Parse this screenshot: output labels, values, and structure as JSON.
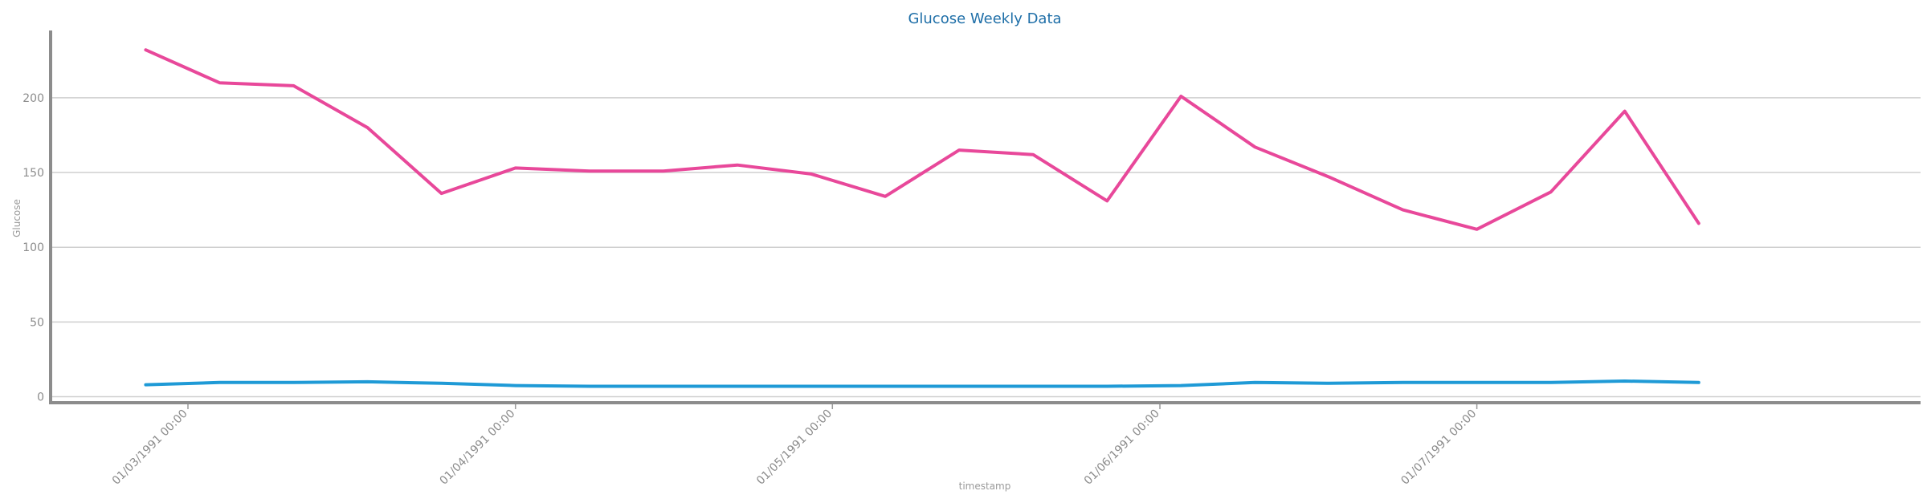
{
  "chart_data": {
    "type": "line",
    "title": "Glucose Weekly Data",
    "xlabel": "timestamp",
    "ylabel": "Glucose",
    "ylim": [
      -4,
      245
    ],
    "yticks": [
      0,
      50,
      100,
      150,
      200
    ],
    "xlim": [
      "1991-02-16",
      "1991-08-12"
    ],
    "xticks": [
      {
        "date": "1991-03-01",
        "label": "01/03/1991 00:00"
      },
      {
        "date": "1991-04-01",
        "label": "01/04/1991 00:00"
      },
      {
        "date": "1991-05-01",
        "label": "01/05/1991 00:00"
      },
      {
        "date": "1991-06-01",
        "label": "01/06/1991 00:00"
      },
      {
        "date": "1991-07-01",
        "label": "01/07/1991 00:00"
      }
    ],
    "grid": true,
    "x": [
      "1991-02-25",
      "1991-03-04",
      "1991-03-11",
      "1991-03-18",
      "1991-03-25",
      "1991-04-01",
      "1991-04-08",
      "1991-04-15",
      "1991-04-22",
      "1991-04-29",
      "1991-05-06",
      "1991-05-13",
      "1991-05-20",
      "1991-05-27",
      "1991-06-03",
      "1991-06-10",
      "1991-06-17",
      "1991-06-24",
      "1991-07-01",
      "1991-07-08",
      "1991-07-15",
      "1991-07-22"
    ],
    "series": [
      {
        "color": "#e8489a",
        "values": [
          232,
          210,
          208,
          180,
          136,
          153,
          151,
          151,
          155,
          149,
          134,
          165,
          162,
          131,
          201,
          167,
          147,
          125,
          112,
          137,
          191,
          116
        ]
      },
      {
        "color": "#1f9ad6",
        "values": [
          8,
          9.5,
          9.5,
          10,
          9,
          7.5,
          7,
          7,
          7,
          7,
          7,
          7,
          7,
          7,
          7.5,
          9.5,
          9,
          9.5,
          9.5,
          9.5,
          10.5,
          9.5
        ]
      }
    ]
  }
}
